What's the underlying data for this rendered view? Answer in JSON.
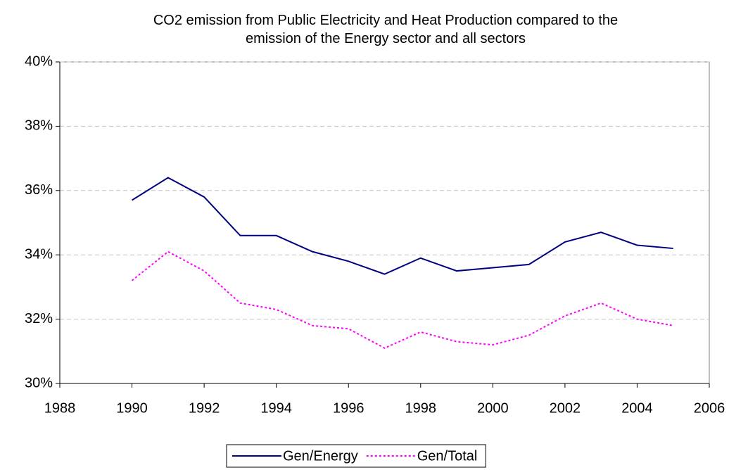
{
  "chart_data": {
    "type": "line",
    "title": "CO2 emission from Public Electricity and Heat Production compared to the emission of the Energy sector and all sectors",
    "x": [
      1990,
      1991,
      1992,
      1993,
      1994,
      1995,
      1996,
      1997,
      1998,
      1999,
      2000,
      2001,
      2002,
      2003,
      2004,
      2005
    ],
    "series": [
      {
        "name": "Gen/Energy",
        "color": "#000080",
        "dash": "solid",
        "values": [
          35.7,
          36.4,
          35.8,
          34.6,
          34.6,
          34.1,
          33.8,
          33.4,
          33.9,
          33.5,
          33.6,
          33.7,
          34.4,
          34.7,
          34.3,
          34.2
        ]
      },
      {
        "name": "Gen/Total",
        "color": "#ff00ff",
        "dash": "dotted",
        "values": [
          33.2,
          34.1,
          33.5,
          32.5,
          32.3,
          31.8,
          31.7,
          31.1,
          31.6,
          31.3,
          31.2,
          31.5,
          32.1,
          32.5,
          32.0,
          31.8
        ]
      }
    ],
    "xlim": [
      1988,
      2006
    ],
    "xticks": [
      1988,
      1990,
      1992,
      1994,
      1996,
      1998,
      2000,
      2002,
      2004,
      2006
    ],
    "ylim": [
      30,
      40
    ],
    "yticks": [
      {
        "value": 30,
        "label": "30%"
      },
      {
        "value": 32,
        "label": "32%"
      },
      {
        "value": 34,
        "label": "34%"
      },
      {
        "value": 36,
        "label": "36%"
      },
      {
        "value": 38,
        "label": "38%"
      },
      {
        "value": 40,
        "label": "40%"
      }
    ],
    "grid": true,
    "legend": "bottom"
  }
}
